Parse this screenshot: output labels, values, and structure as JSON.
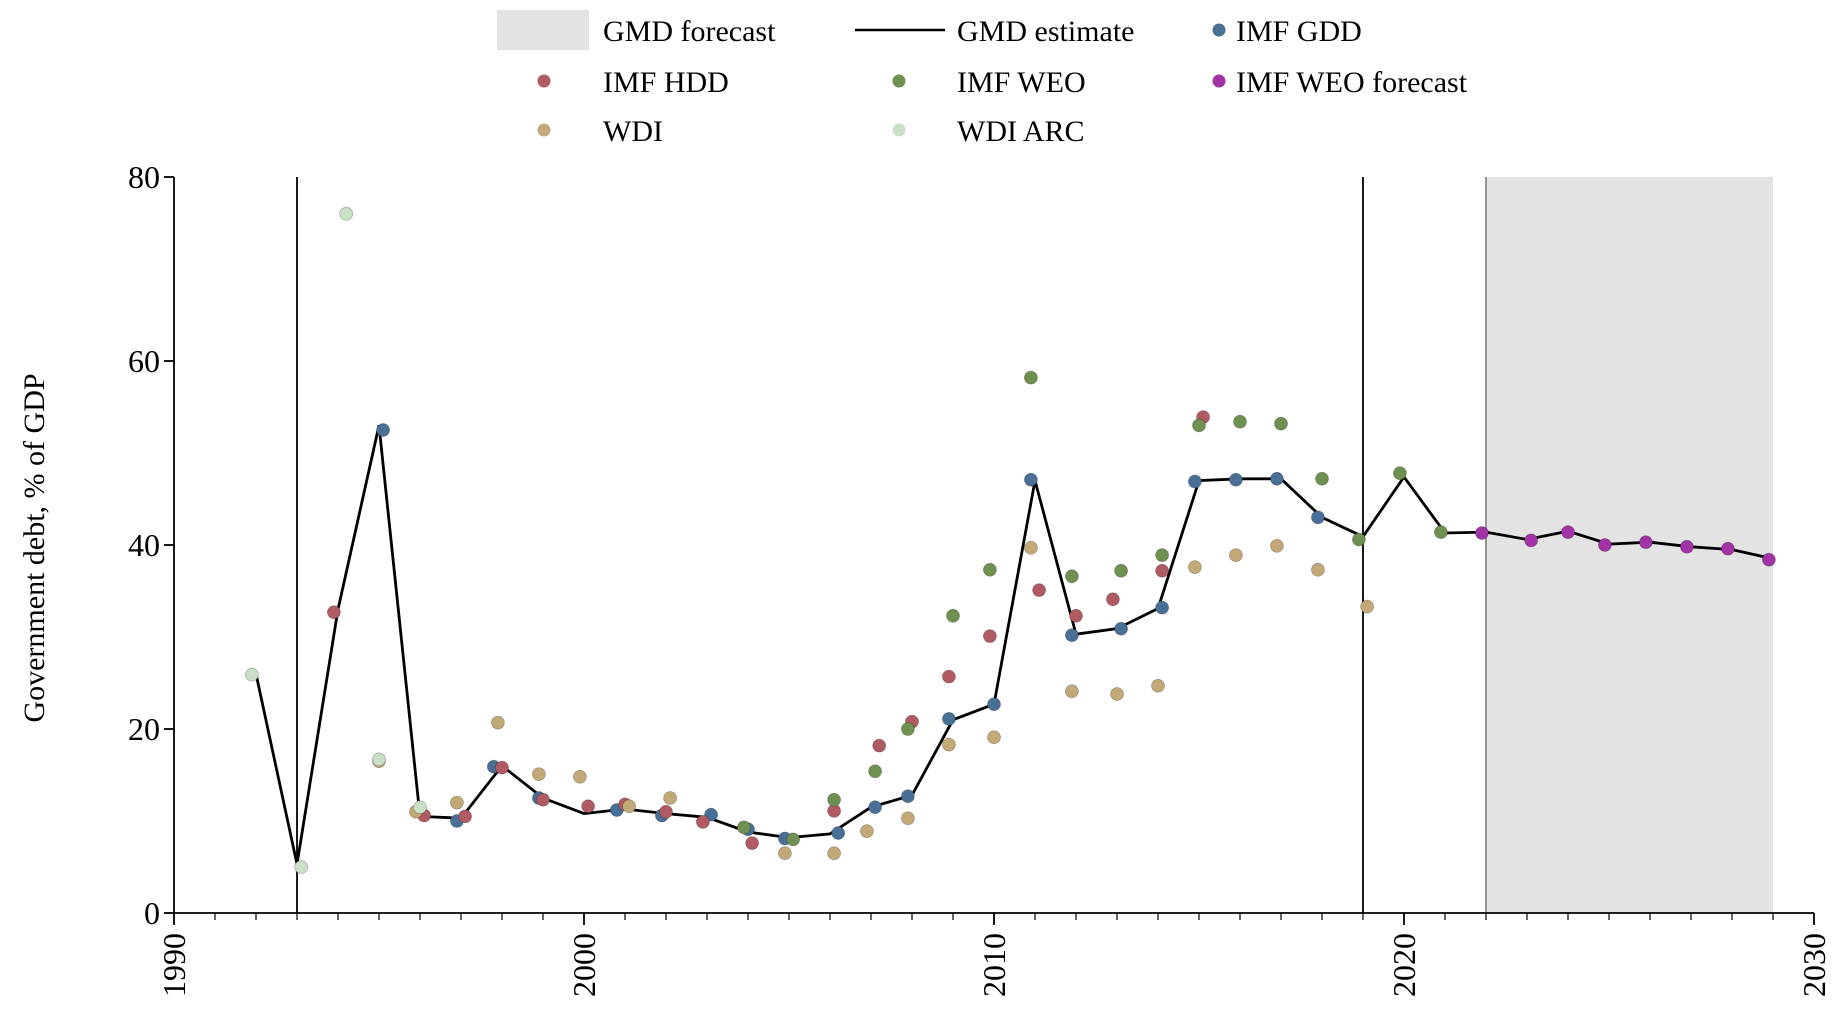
{
  "legend": [
    {
      "label": "GMD forecast",
      "kind": "band",
      "color": "#e3e3e3"
    },
    {
      "label": "GMD estimate",
      "kind": "line",
      "color": "#000000"
    },
    {
      "label": "IMF GDD",
      "kind": "dot",
      "color": "#4a6f96"
    },
    {
      "label": "IMF HDD",
      "kind": "dot",
      "color": "#b05a62"
    },
    {
      "label": "IMF WEO",
      "kind": "dot",
      "color": "#6e9050"
    },
    {
      "label": "IMF WEO forecast",
      "kind": "dot",
      "color": "#a133a6"
    },
    {
      "label": "WDI",
      "kind": "dot",
      "color": "#c3a978"
    },
    {
      "label": "WDI ARC",
      "kind": "dot",
      "color": "#c9e0c6"
    }
  ],
  "chart_data": {
    "type": "line",
    "xlabel": "",
    "ylabel": "Government debt, % of GDP",
    "xlim": [
      1990,
      2030
    ],
    "ylim": [
      0,
      80
    ],
    "xticks": [
      "1990",
      "2000",
      "2010",
      "2020",
      "2030"
    ],
    "yticks": [
      "0",
      "20",
      "40",
      "60",
      "80"
    ],
    "grid": false,
    "legend_position": "top",
    "vertical_lines": [
      1993,
      2019
    ],
    "forecast_band": [
      2022,
      2029
    ],
    "line": {
      "name": "GMD estimate",
      "color": "#000000",
      "x": [
        1992,
        1993,
        1994,
        1995,
        1996,
        1997,
        1998,
        1999,
        2000,
        2001,
        2002,
        2003,
        2004,
        2005,
        2006,
        2007,
        2008,
        2009,
        2010,
        2011,
        2012,
        2013,
        2014,
        2015,
        2016,
        2017,
        2018,
        2019,
        2020,
        2021,
        2022,
        2023,
        2024,
        2025,
        2026,
        2027,
        2028,
        2029
      ],
      "y": [
        26,
        5.3,
        33,
        53,
        10.5,
        10.3,
        16,
        12.5,
        10.8,
        11.3,
        10.8,
        10.4,
        8.8,
        8.2,
        8.6,
        11.5,
        12.8,
        21,
        22.7,
        47,
        30.3,
        30.9,
        33.1,
        47,
        47.2,
        47.2,
        43,
        40.9,
        47.4,
        41.3,
        41.4,
        40.6,
        41.5,
        40.1,
        40.3,
        39.8,
        39.5,
        38.5
      ]
    },
    "series": [
      {
        "name": "IMF GDD",
        "color": "#4a6f96",
        "points": [
          [
            1995.1,
            52.5
          ],
          [
            1996.9,
            10.0
          ],
          [
            1997.8,
            15.9
          ],
          [
            1998.9,
            12.5
          ],
          [
            2000.8,
            11.2
          ],
          [
            2001.9,
            10.6
          ],
          [
            2003.1,
            10.7
          ],
          [
            2004.0,
            9.1
          ],
          [
            2004.9,
            8.1
          ],
          [
            2006.2,
            8.7
          ],
          [
            2007.1,
            11.5
          ],
          [
            2007.9,
            12.7
          ],
          [
            2008.9,
            21.1
          ],
          [
            2010.0,
            22.7
          ],
          [
            2010.9,
            47.1
          ],
          [
            2011.9,
            30.2
          ],
          [
            2013.1,
            30.9
          ],
          [
            2014.1,
            33.2
          ],
          [
            2014.9,
            46.9
          ],
          [
            2015.9,
            47.1
          ],
          [
            2016.9,
            47.2
          ],
          [
            2017.9,
            43.0
          ]
        ]
      },
      {
        "name": "IMF HDD",
        "color": "#b05a62",
        "points": [
          [
            1993.9,
            32.7
          ],
          [
            1996.1,
            10.6
          ],
          [
            1997.1,
            10.5
          ],
          [
            1998.0,
            15.8
          ],
          [
            1999.0,
            12.3
          ],
          [
            2000.1,
            11.6
          ],
          [
            2001.0,
            11.8
          ],
          [
            2002.0,
            11.0
          ],
          [
            2002.9,
            9.9
          ],
          [
            2004.1,
            7.6
          ],
          [
            2006.1,
            11.1
          ],
          [
            2007.2,
            18.2
          ],
          [
            2008.0,
            20.8
          ],
          [
            2008.9,
            25.7
          ],
          [
            2009.9,
            30.1
          ],
          [
            2011.1,
            35.1
          ],
          [
            2012.0,
            32.3
          ],
          [
            2012.9,
            34.1
          ],
          [
            2014.1,
            37.2
          ],
          [
            2015.1,
            53.9
          ]
        ]
      },
      {
        "name": "IMF WEO",
        "color": "#6e9050",
        "points": [
          [
            2003.9,
            9.3
          ],
          [
            2005.1,
            8.0
          ],
          [
            2006.1,
            12.3
          ],
          [
            2007.1,
            15.4
          ],
          [
            2007.9,
            20.0
          ],
          [
            2009.0,
            32.3
          ],
          [
            2009.9,
            37.3
          ],
          [
            2010.9,
            58.2
          ],
          [
            2011.9,
            36.6
          ],
          [
            2013.1,
            37.2
          ],
          [
            2014.1,
            38.9
          ],
          [
            2015.0,
            53.0
          ],
          [
            2016.0,
            53.4
          ],
          [
            2017.0,
            53.2
          ],
          [
            2018.0,
            47.2
          ],
          [
            2018.9,
            40.6
          ],
          [
            2019.9,
            47.8
          ],
          [
            2020.9,
            41.4
          ]
        ]
      },
      {
        "name": "IMF WEO forecast",
        "color": "#a133a6",
        "points": [
          [
            2021.9,
            41.3
          ],
          [
            2023.1,
            40.5
          ],
          [
            2024.0,
            41.4
          ],
          [
            2024.9,
            40.0
          ],
          [
            2025.9,
            40.3
          ],
          [
            2026.9,
            39.8
          ],
          [
            2027.9,
            39.6
          ],
          [
            2028.9,
            38.4
          ]
        ]
      },
      {
        "name": "WDI",
        "color": "#c3a978",
        "points": [
          [
            1995.0,
            16.5
          ],
          [
            1995.9,
            11.0
          ],
          [
            1996.9,
            12.0
          ],
          [
            1997.9,
            20.7
          ],
          [
            1998.9,
            15.1
          ],
          [
            1999.9,
            14.8
          ],
          [
            2001.1,
            11.6
          ],
          [
            2002.1,
            12.5
          ],
          [
            2004.9,
            6.5
          ],
          [
            2006.1,
            6.5
          ],
          [
            2006.9,
            8.9
          ],
          [
            2007.9,
            10.3
          ],
          [
            2008.9,
            18.3
          ],
          [
            2010.0,
            19.1
          ],
          [
            2010.9,
            39.7
          ],
          [
            2011.9,
            24.1
          ],
          [
            2013.0,
            23.8
          ],
          [
            2014.0,
            24.7
          ],
          [
            2014.9,
            37.6
          ],
          [
            2015.9,
            38.9
          ],
          [
            2016.9,
            39.9
          ],
          [
            2017.9,
            37.3
          ],
          [
            2019.1,
            33.3
          ]
        ]
      },
      {
        "name": "WDI ARC",
        "color": "#c9e0c6",
        "points": [
          [
            1991.9,
            25.9
          ],
          [
            1993.1,
            5.0
          ],
          [
            1994.2,
            76.0
          ],
          [
            1995.0,
            16.7
          ],
          [
            1996.0,
            11.5
          ]
        ]
      }
    ]
  }
}
